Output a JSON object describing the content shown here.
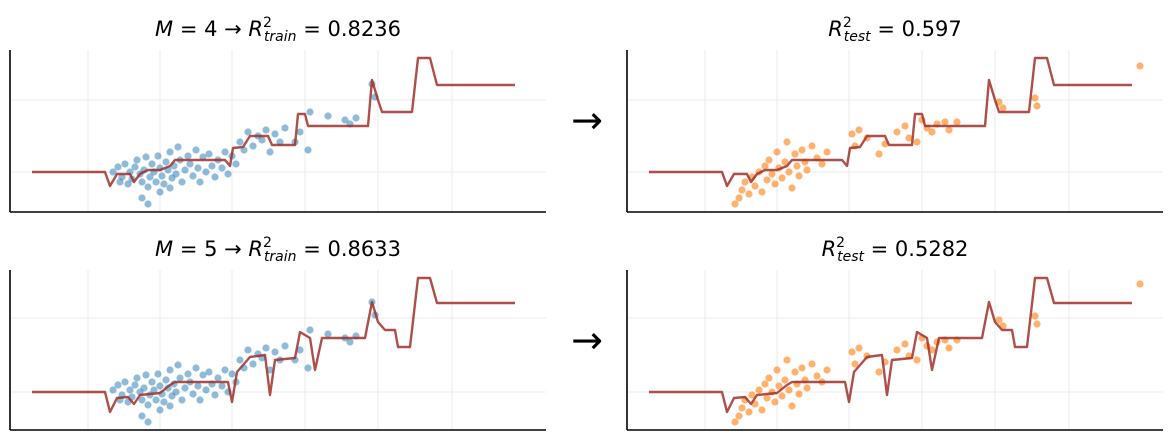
{
  "arrows": [
    "→",
    "→"
  ],
  "chart_data": [
    {
      "type": "scatter",
      "title": [
        {
          "text": "M",
          "italic": true
        },
        {
          "text": " = 4 → "
        },
        {
          "text": "R",
          "italic": true
        },
        {
          "text": "2",
          "sup": true
        },
        {
          "text": "train",
          "sub": true,
          "italic": true
        },
        {
          "text": " = 0.8236"
        }
      ],
      "xlim": [
        0,
        536
      ],
      "ylim": [
        0,
        162
      ],
      "xticks": [
        78,
        150,
        222,
        295,
        368,
        442
      ],
      "yticks": [
        40,
        112
      ],
      "grid": true,
      "series": [
        {
          "type": "scatter",
          "color": "#1f77b4",
          "alpha": 0.5,
          "x": [
            103,
            108,
            110,
            112,
            115,
            118,
            120,
            122,
            125,
            127,
            130,
            132,
            134,
            136,
            138,
            140,
            142,
            144,
            146,
            148,
            150,
            152,
            154,
            156,
            158,
            160,
            162,
            164,
            166,
            168,
            170,
            172,
            175,
            178,
            180,
            183,
            186,
            188,
            190,
            193,
            196,
            199,
            202,
            205,
            208,
            212,
            215,
            218,
            222,
            226,
            230,
            234,
            238,
            243,
            248,
            252,
            256,
            260,
            265,
            270,
            275,
            285,
            290,
            298,
            300,
            318,
            335,
            340,
            346,
            362,
            365,
            138,
            132,
            150,
            160
          ],
          "values": [
            40,
            45,
            30,
            35,
            48,
            28,
            40,
            33,
            45,
            52,
            38,
            30,
            42,
            55,
            25,
            35,
            48,
            40,
            30,
            56,
            44,
            36,
            28,
            50,
            42,
            60,
            34,
            46,
            38,
            65,
            52,
            30,
            42,
            56,
            48,
            36,
            62,
            44,
            30,
            55,
            40,
            58,
            46,
            35,
            52,
            44,
            60,
            38,
            56,
            48,
            70,
            62,
            80,
            66,
            76,
            72,
            82,
            60,
            78,
            70,
            84,
            70,
            80,
            62,
            100,
            96,
            92,
            88,
            94,
            128,
            115,
            8,
            14,
            20,
            24
          ]
        },
        {
          "type": "line",
          "color": "#a0302a",
          "alpha": 0.85,
          "x": [
            22,
            95,
            100,
            107,
            120,
            124,
            130,
            138,
            150,
            160,
            165,
            215,
            220,
            223,
            233,
            240,
            258,
            262,
            285,
            288,
            295,
            298,
            358,
            362,
            368,
            372,
            402,
            408,
            420,
            427,
            505
          ],
          "values": [
            40,
            40,
            26,
            38,
            38,
            30,
            38,
            42,
            42,
            46,
            52,
            52,
            46,
            64,
            65,
            76,
            76,
            67,
            67,
            98,
            98,
            86,
            86,
            132,
            112,
            100,
            100,
            154,
            154,
            127,
            127
          ]
        }
      ]
    },
    {
      "type": "scatter",
      "title": [
        {
          "text": "R",
          "italic": true
        },
        {
          "text": "2",
          "sup": true
        },
        {
          "text": "test",
          "sub": true,
          "italic": true
        },
        {
          "text": " = 0.597"
        }
      ],
      "xlim": [
        0,
        536
      ],
      "ylim": [
        0,
        162
      ],
      "xticks": [
        78,
        150,
        222,
        295,
        368,
        442
      ],
      "yticks": [
        40,
        112
      ],
      "grid": true,
      "series": [
        {
          "type": "scatter",
          "color": "#ff7f0e",
          "alpha": 0.6,
          "x": [
            108,
            112,
            115,
            118,
            122,
            125,
            128,
            132,
            135,
            138,
            140,
            142,
            145,
            148,
            150,
            152,
            155,
            158,
            160,
            162,
            165,
            168,
            170,
            172,
            175,
            178,
            180,
            185,
            190,
            195,
            200,
            225,
            228,
            232,
            240,
            252,
            258,
            270,
            278,
            282,
            290,
            295,
            300,
            305,
            310,
            318,
            322,
            330,
            372,
            376,
            408,
            410,
            513
          ],
          "values": [
            8,
            14,
            22,
            30,
            18,
            35,
            26,
            40,
            20,
            46,
            32,
            52,
            38,
            28,
            60,
            44,
            34,
            50,
            70,
            40,
            24,
            58,
            46,
            36,
            62,
            50,
            42,
            66,
            54,
            48,
            60,
            78,
            66,
            82,
            74,
            58,
            68,
            80,
            86,
            74,
            70,
            92,
            84,
            80,
            88,
            90,
            82,
            90,
            110,
            104,
            114,
            106,
            146
          ]
        },
        {
          "type": "line",
          "color": "#a0302a",
          "alpha": 0.85,
          "x": [
            22,
            95,
            100,
            107,
            120,
            124,
            130,
            138,
            150,
            160,
            165,
            215,
            220,
            223,
            233,
            240,
            258,
            262,
            285,
            288,
            295,
            298,
            358,
            362,
            368,
            372,
            402,
            408,
            420,
            427,
            505
          ],
          "values": [
            40,
            40,
            26,
            38,
            38,
            30,
            38,
            42,
            42,
            46,
            52,
            52,
            46,
            64,
            65,
            76,
            76,
            67,
            67,
            98,
            98,
            86,
            86,
            132,
            112,
            100,
            100,
            154,
            154,
            127,
            127
          ]
        }
      ]
    },
    {
      "type": "scatter",
      "title": [
        {
          "text": "M",
          "italic": true
        },
        {
          "text": " = 5 → "
        },
        {
          "text": "R",
          "italic": true
        },
        {
          "text": "2",
          "sup": true
        },
        {
          "text": "train",
          "sub": true,
          "italic": true
        },
        {
          "text": " = 0.8633"
        }
      ],
      "xlim": [
        0,
        536
      ],
      "ylim": [
        0,
        160
      ],
      "xticks": [
        78,
        150,
        222,
        295,
        368,
        442
      ],
      "yticks": [
        38,
        112
      ],
      "grid": true,
      "series": [
        {
          "type": "scatter",
          "color": "#1f77b4",
          "alpha": 0.5,
          "x": [
            103,
            108,
            110,
            112,
            115,
            118,
            120,
            122,
            125,
            127,
            130,
            132,
            134,
            136,
            138,
            140,
            142,
            144,
            146,
            148,
            150,
            152,
            154,
            156,
            158,
            160,
            162,
            164,
            166,
            168,
            170,
            172,
            175,
            178,
            180,
            183,
            186,
            188,
            190,
            193,
            196,
            199,
            202,
            205,
            208,
            212,
            215,
            218,
            222,
            226,
            230,
            234,
            238,
            243,
            248,
            252,
            256,
            260,
            265,
            270,
            275,
            285,
            290,
            298,
            300,
            318,
            335,
            340,
            346,
            362,
            365,
            138,
            132,
            150,
            160
          ],
          "values": [
            40,
            45,
            30,
            35,
            48,
            28,
            40,
            33,
            45,
            52,
            38,
            30,
            42,
            55,
            25,
            35,
            48,
            40,
            30,
            56,
            44,
            36,
            28,
            50,
            42,
            60,
            34,
            46,
            38,
            65,
            52,
            30,
            42,
            56,
            48,
            36,
            62,
            44,
            30,
            55,
            40,
            58,
            46,
            35,
            52,
            44,
            60,
            38,
            56,
            48,
            70,
            62,
            80,
            66,
            76,
            72,
            82,
            60,
            78,
            70,
            84,
            70,
            80,
            62,
            100,
            96,
            92,
            88,
            94,
            128,
            115,
            8,
            14,
            20,
            24
          ]
        },
        {
          "type": "line",
          "color": "#a0302a",
          "alpha": 0.85,
          "x": [
            22,
            95,
            100,
            107,
            118,
            124,
            130,
            150,
            160,
            165,
            218,
            222,
            227,
            240,
            255,
            260,
            265,
            285,
            290,
            300,
            305,
            312,
            355,
            362,
            368,
            375,
            385,
            388,
            400,
            408,
            420,
            427,
            505
          ],
          "values": [
            38,
            38,
            18,
            32,
            33,
            26,
            35,
            37,
            45,
            48,
            48,
            28,
            58,
            73,
            75,
            35,
            70,
            72,
            98,
            92,
            60,
            92,
            92,
            128,
            108,
            100,
            100,
            83,
            83,
            152,
            152,
            127,
            127
          ]
        }
      ]
    },
    {
      "type": "scatter",
      "title": [
        {
          "text": "R",
          "italic": true
        },
        {
          "text": "2",
          "sup": true
        },
        {
          "text": "test",
          "sub": true,
          "italic": true
        },
        {
          "text": " = 0.5282"
        }
      ],
      "xlim": [
        0,
        536
      ],
      "ylim": [
        0,
        160
      ],
      "xticks": [
        78,
        150,
        222,
        295,
        368,
        442
      ],
      "yticks": [
        38,
        112
      ],
      "grid": true,
      "series": [
        {
          "type": "scatter",
          "color": "#ff7f0e",
          "alpha": 0.6,
          "x": [
            108,
            112,
            115,
            118,
            122,
            125,
            128,
            132,
            135,
            138,
            140,
            142,
            145,
            148,
            150,
            152,
            155,
            158,
            160,
            162,
            165,
            168,
            170,
            172,
            175,
            178,
            180,
            185,
            190,
            195,
            200,
            225,
            228,
            232,
            240,
            252,
            258,
            270,
            278,
            282,
            290,
            295,
            300,
            305,
            310,
            318,
            322,
            330,
            372,
            376,
            408,
            410,
            513
          ],
          "values": [
            8,
            14,
            22,
            30,
            18,
            35,
            26,
            40,
            20,
            46,
            32,
            52,
            38,
            28,
            60,
            44,
            34,
            50,
            70,
            40,
            24,
            58,
            46,
            36,
            62,
            50,
            42,
            66,
            54,
            48,
            60,
            78,
            66,
            82,
            74,
            58,
            68,
            80,
            86,
            74,
            70,
            92,
            84,
            80,
            88,
            90,
            82,
            90,
            110,
            104,
            114,
            106,
            146
          ]
        },
        {
          "type": "line",
          "color": "#a0302a",
          "alpha": 0.85,
          "x": [
            22,
            95,
            100,
            107,
            118,
            124,
            130,
            150,
            160,
            165,
            218,
            222,
            227,
            240,
            255,
            260,
            265,
            285,
            290,
            300,
            305,
            312,
            355,
            362,
            368,
            375,
            385,
            388,
            400,
            408,
            420,
            427,
            505
          ],
          "values": [
            38,
            38,
            18,
            32,
            33,
            26,
            35,
            37,
            45,
            48,
            48,
            28,
            58,
            73,
            75,
            35,
            70,
            72,
            98,
            92,
            60,
            92,
            92,
            128,
            108,
            100,
            100,
            83,
            83,
            152,
            152,
            127,
            127
          ]
        }
      ]
    }
  ]
}
